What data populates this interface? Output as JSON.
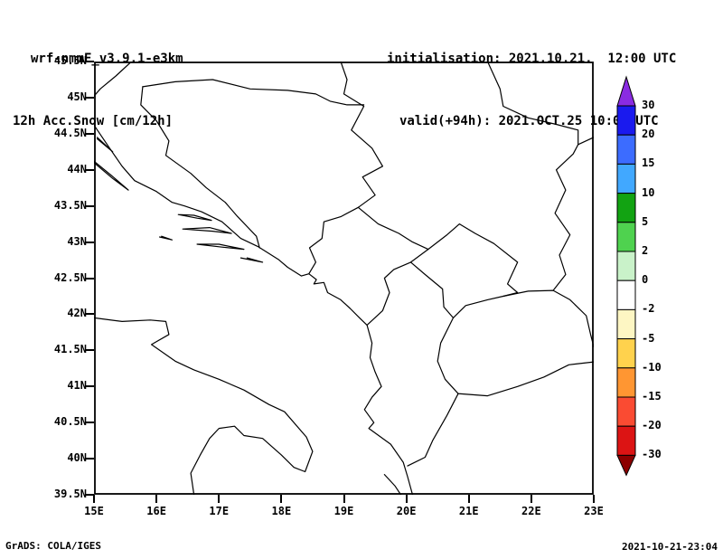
{
  "header": {
    "model": "wrf-nmmE_v3.9.1-e3km",
    "product": "12h Acc.Snow [cm/12h]",
    "init_label": "initialisation: 2021.10.21.  12:00 UTC",
    "valid_label": "valid(+94h): 2021.OCT.25 10:00 UTC"
  },
  "footer": {
    "credit": "GrADS: COLA/IGES",
    "created": "2021-10-21-23:04"
  },
  "chart_data": {
    "type": "heatmap",
    "subtype": "GrADS filled-contour forecast map over lat/lon grid",
    "title": "12h Acc.Snow [cm/12h]",
    "model": "wrf-nmmE_v3.9.1-e3km",
    "initialisation": "2021.10.21. 12:00 UTC",
    "valid": "(+94h) 2021.OCT.25 10:00 UTC",
    "region": "Adriatic / Balkans",
    "lon_range": [
      15,
      23
    ],
    "lat_range": [
      39.5,
      45.5
    ],
    "xlabel_ticks": [
      "15E",
      "16E",
      "17E",
      "18E",
      "19E",
      "20E",
      "21E",
      "22E",
      "23E"
    ],
    "ylabel_ticks": [
      "45.5N",
      "45N",
      "44.5N",
      "44N",
      "43.5N",
      "43N",
      "42.5N",
      "42N",
      "41.5N",
      "41N",
      "40.5N",
      "40N",
      "39.5N"
    ],
    "grid": false,
    "field_note": "no snow accumulation shaded anywhere in the domain; entire map background is white (values in the 0 band), only coastlines and country borders drawn",
    "colorbar": {
      "units": "cm/12h",
      "orientation": "vertical-right",
      "levels": [
        30,
        20,
        15,
        10,
        5,
        2,
        0,
        -2,
        -5,
        -10,
        -15,
        -20,
        -30
      ],
      "colors_top_to_bottom": [
        "#8a2be2",
        "#1a1aee",
        "#3c6cff",
        "#41a8ff",
        "#12a312",
        "#4fd24f",
        "#c9f2c9",
        "#ffffff",
        "#fdf6c3",
        "#ffd24d",
        "#ff9632",
        "#fa4b32",
        "#dc1414",
        "#8c0000"
      ]
    },
    "map_outlines": {
      "projection": "latlon",
      "polylines": {
        "coast_east_adriatic": [
          [
            15.0,
            44.62
          ],
          [
            15.25,
            44.3
          ],
          [
            15.45,
            44.05
          ],
          [
            15.65,
            43.85
          ],
          [
            16.0,
            43.7
          ],
          [
            16.25,
            43.55
          ],
          [
            16.45,
            43.5
          ],
          [
            16.72,
            43.42
          ],
          [
            17.05,
            43.28
          ],
          [
            17.35,
            43.05
          ],
          [
            17.62,
            42.94
          ],
          [
            17.95,
            42.76
          ],
          [
            18.1,
            42.65
          ],
          [
            18.32,
            42.53
          ],
          [
            18.44,
            42.56
          ],
          [
            18.56,
            42.48
          ],
          [
            18.52,
            42.42
          ],
          [
            18.68,
            42.44
          ],
          [
            18.74,
            42.3
          ],
          [
            18.95,
            42.2
          ],
          [
            19.1,
            42.08
          ],
          [
            19.25,
            41.95
          ],
          [
            19.37,
            41.85
          ],
          [
            19.45,
            41.6
          ],
          [
            19.42,
            41.4
          ],
          [
            19.5,
            41.2
          ],
          [
            19.6,
            41.0
          ],
          [
            19.45,
            40.85
          ],
          [
            19.33,
            40.68
          ],
          [
            19.48,
            40.5
          ],
          [
            19.4,
            40.42
          ],
          [
            19.75,
            40.2
          ],
          [
            19.95,
            39.95
          ],
          [
            20.02,
            39.75
          ],
          [
            20.1,
            39.5
          ]
        ],
        "italy_coast": [
          [
            15.0,
            41.95
          ],
          [
            15.45,
            41.9
          ],
          [
            15.9,
            41.92
          ],
          [
            16.15,
            41.9
          ],
          [
            16.2,
            41.72
          ],
          [
            15.92,
            41.58
          ],
          [
            16.3,
            41.35
          ],
          [
            16.6,
            41.23
          ],
          [
            17.0,
            41.1
          ],
          [
            17.4,
            40.95
          ],
          [
            17.8,
            40.75
          ],
          [
            18.05,
            40.65
          ],
          [
            18.4,
            40.3
          ],
          [
            18.5,
            40.1
          ],
          [
            18.38,
            39.82
          ],
          [
            18.2,
            39.88
          ],
          [
            18.0,
            40.05
          ],
          [
            17.7,
            40.28
          ],
          [
            17.4,
            40.32
          ],
          [
            17.25,
            40.45
          ],
          [
            17.0,
            40.42
          ],
          [
            16.85,
            40.28
          ],
          [
            16.7,
            40.05
          ],
          [
            16.55,
            39.8
          ],
          [
            16.6,
            39.5
          ]
        ],
        "croatia_slovenia": [
          [
            15.6,
            45.5
          ],
          [
            15.35,
            45.3
          ],
          [
            15.1,
            45.12
          ],
          [
            15.0,
            45.02
          ]
        ],
        "bosnia_west_border": [
          [
            15.78,
            45.15
          ],
          [
            15.75,
            44.9
          ],
          [
            16.0,
            44.68
          ],
          [
            16.2,
            44.4
          ],
          [
            16.15,
            44.2
          ],
          [
            16.55,
            43.95
          ],
          [
            16.8,
            43.75
          ],
          [
            17.1,
            43.55
          ],
          [
            17.3,
            43.35
          ],
          [
            17.6,
            43.08
          ],
          [
            17.65,
            42.92
          ]
        ],
        "sava_border": [
          [
            15.78,
            45.15
          ],
          [
            16.3,
            45.22
          ],
          [
            16.9,
            45.25
          ],
          [
            17.5,
            45.12
          ],
          [
            18.1,
            45.1
          ],
          [
            18.55,
            45.05
          ],
          [
            18.78,
            44.95
          ],
          [
            19.05,
            44.9
          ],
          [
            19.32,
            44.9
          ]
        ],
        "drina_serbia_west": [
          [
            18.95,
            45.5
          ],
          [
            19.05,
            45.25
          ],
          [
            19.0,
            45.05
          ],
          [
            19.32,
            44.88
          ],
          [
            19.12,
            44.55
          ],
          [
            19.45,
            44.3
          ],
          [
            19.62,
            44.05
          ],
          [
            19.3,
            43.9
          ],
          [
            19.5,
            43.65
          ],
          [
            19.23,
            43.48
          ]
        ],
        "bosnia_montenegro": [
          [
            19.23,
            43.48
          ],
          [
            18.95,
            43.35
          ],
          [
            18.68,
            43.28
          ],
          [
            18.65,
            43.05
          ],
          [
            18.45,
            42.92
          ],
          [
            18.55,
            42.72
          ],
          [
            18.44,
            42.56
          ]
        ],
        "serbia_montenegro": [
          [
            19.23,
            43.48
          ],
          [
            19.55,
            43.25
          ],
          [
            19.88,
            43.12
          ],
          [
            20.1,
            43.0
          ],
          [
            20.35,
            42.9
          ]
        ],
        "montenegro_albania": [
          [
            19.37,
            41.85
          ],
          [
            19.62,
            42.05
          ],
          [
            19.73,
            42.3
          ],
          [
            19.65,
            42.5
          ],
          [
            19.8,
            42.62
          ],
          [
            20.07,
            42.72
          ],
          [
            20.35,
            42.9
          ]
        ],
        "kosovo_outline": [
          [
            20.35,
            42.9
          ],
          [
            20.65,
            43.1
          ],
          [
            20.85,
            43.25
          ],
          [
            21.1,
            43.12
          ],
          [
            21.4,
            42.98
          ],
          [
            21.78,
            42.72
          ],
          [
            21.62,
            42.42
          ],
          [
            21.78,
            42.3
          ],
          [
            21.55,
            42.25
          ],
          [
            21.3,
            42.2
          ],
          [
            20.95,
            42.12
          ],
          [
            20.75,
            41.95
          ],
          [
            20.6,
            42.1
          ],
          [
            20.58,
            42.35
          ],
          [
            20.3,
            42.55
          ],
          [
            20.07,
            42.72
          ]
        ],
        "albania_macedonia": [
          [
            20.75,
            41.95
          ],
          [
            20.55,
            41.6
          ],
          [
            20.5,
            41.35
          ],
          [
            20.62,
            41.1
          ],
          [
            20.83,
            40.9
          ]
        ],
        "greece_albania": [
          [
            20.02,
            39.9
          ],
          [
            20.3,
            40.02
          ],
          [
            20.42,
            40.25
          ],
          [
            20.65,
            40.6
          ],
          [
            20.83,
            40.9
          ]
        ],
        "greece_macedonia": [
          [
            20.83,
            40.9
          ],
          [
            21.3,
            40.87
          ],
          [
            21.78,
            41.0
          ],
          [
            22.2,
            41.13
          ],
          [
            22.6,
            41.3
          ],
          [
            23.0,
            41.34
          ]
        ],
        "macedonia_north_east": [
          [
            21.55,
            42.25
          ],
          [
            21.95,
            42.32
          ],
          [
            22.35,
            42.33
          ],
          [
            22.62,
            42.2
          ],
          [
            22.88,
            41.98
          ],
          [
            22.95,
            41.72
          ],
          [
            23.0,
            41.55
          ]
        ],
        "serbia_bulgaria": [
          [
            22.35,
            42.33
          ],
          [
            22.55,
            42.55
          ],
          [
            22.45,
            42.82
          ],
          [
            22.62,
            43.1
          ],
          [
            22.38,
            43.4
          ],
          [
            22.55,
            43.72
          ],
          [
            22.4,
            44.0
          ],
          [
            22.67,
            44.22
          ],
          [
            22.75,
            44.35
          ],
          [
            23.0,
            44.45
          ]
        ],
        "danube_romania": [
          [
            21.3,
            45.5
          ],
          [
            21.5,
            45.12
          ],
          [
            21.55,
            44.88
          ],
          [
            21.95,
            44.72
          ],
          [
            22.4,
            44.63
          ],
          [
            22.75,
            44.55
          ],
          [
            22.75,
            44.35
          ]
        ],
        "island_pag": [
          [
            15.05,
            44.45
          ],
          [
            15.3,
            44.25
          ],
          [
            15.05,
            44.43
          ]
        ],
        "island_dugi_otok": [
          [
            15.0,
            44.1
          ],
          [
            15.3,
            43.88
          ],
          [
            15.55,
            43.72
          ],
          [
            15.28,
            43.92
          ],
          [
            15.0,
            44.12
          ]
        ],
        "island_brac": [
          [
            16.35,
            43.38
          ],
          [
            16.65,
            43.33
          ],
          [
            16.88,
            43.3
          ],
          [
            16.6,
            43.37
          ],
          [
            16.35,
            43.38
          ]
        ],
        "island_hvar": [
          [
            16.42,
            43.18
          ],
          [
            16.9,
            43.15
          ],
          [
            17.2,
            43.12
          ],
          [
            16.85,
            43.2
          ],
          [
            16.42,
            43.18
          ]
        ],
        "island_korcula": [
          [
            16.65,
            42.97
          ],
          [
            17.05,
            42.93
          ],
          [
            17.4,
            42.9
          ],
          [
            17.0,
            42.97
          ],
          [
            16.65,
            42.97
          ]
        ],
        "island_mljet": [
          [
            17.35,
            42.78
          ],
          [
            17.7,
            42.72
          ],
          [
            17.45,
            42.78
          ]
        ],
        "island_vis": [
          [
            16.05,
            43.07
          ],
          [
            16.25,
            43.03
          ],
          [
            16.08,
            43.08
          ]
        ],
        "island_corfu": [
          [
            19.65,
            39.78
          ],
          [
            19.82,
            39.62
          ],
          [
            19.95,
            39.45
          ]
        ]
      }
    }
  }
}
